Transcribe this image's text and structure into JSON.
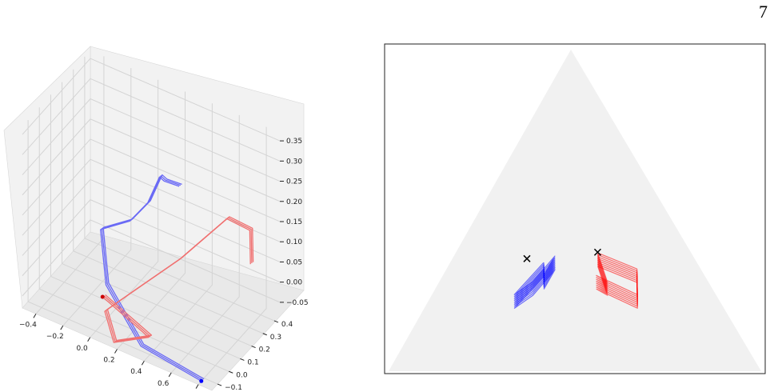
{
  "page_number": "7",
  "chart_data": [
    {
      "type": "line",
      "projection": "3d",
      "title": "",
      "xlabel": "",
      "ylabel": "",
      "zlabel": "",
      "x_ticks": [
        "−0.4",
        "−0.2",
        "0.0",
        "0.2",
        "0.4",
        "0.6",
        "0.8"
      ],
      "y_ticks": [
        "−0.1",
        "0.0",
        "0.1",
        "0.2",
        "0.3",
        "0.4"
      ],
      "z_ticks": [
        "0.35",
        "0.30",
        "0.25",
        "0.20",
        "0.15",
        "0.10",
        "0.05",
        "0.00",
        "−0.05"
      ],
      "xlim": [
        -0.5,
        0.9
      ],
      "ylim": [
        -0.15,
        0.45
      ],
      "zlim": [
        -0.08,
        0.37
      ],
      "grid": true,
      "series": [
        {
          "color": "#6a6af5",
          "marker_color": "#0000ff",
          "values": [
            [
              0.6,
              -0.08,
              0.36
            ],
            [
              0.38,
              0.05,
              0.3
            ],
            [
              0.22,
              0.2,
              0.24
            ],
            [
              0.05,
              0.3,
              0.12
            ],
            [
              -0.15,
              0.38,
              0.02
            ],
            [
              -0.4,
              0.42,
              -0.05
            ],
            [
              -0.05,
              0.05,
              -0.02
            ],
            [
              0.35,
              -0.12,
              -0.06
            ],
            [
              0.78,
              -0.1,
              -0.09
            ]
          ]
        },
        {
          "color": "#f07070",
          "marker_color": "#cc0000",
          "values": [
            [
              0.85,
              0.25,
              0.1
            ],
            [
              0.82,
              0.28,
              0.17
            ],
            [
              0.7,
              0.22,
              0.2
            ],
            [
              0.45,
              0.1,
              0.1
            ],
            [
              0.2,
              -0.02,
              0.02
            ],
            [
              0.05,
              -0.08,
              -0.03
            ],
            [
              0.15,
              -0.12,
              -0.08
            ],
            [
              0.35,
              -0.05,
              -0.06
            ],
            [
              -0.05,
              0.02,
              -0.04
            ]
          ]
        }
      ]
    },
    {
      "type": "line",
      "projection": "ternary",
      "title": "",
      "grid": false,
      "series": [
        {
          "color": "#0000ff",
          "values": [
            [
              0.32,
              0.42,
              0.26
            ],
            [
              0.22,
              0.55,
              0.23
            ],
            [
              0.26,
              0.48,
              0.26
            ],
            [
              0.34,
              0.38,
              0.28
            ],
            [
              0.28,
              0.44,
              0.28
            ]
          ],
          "fixed_point": [
            0.35,
            0.45,
            0.2
          ]
        },
        {
          "color": "#ff0000",
          "values": [
            [
              0.28,
              0.3,
              0.42
            ],
            [
              0.22,
              0.22,
              0.56
            ],
            [
              0.3,
              0.18,
              0.52
            ],
            [
              0.35,
              0.26,
              0.39
            ],
            [
              0.26,
              0.28,
              0.46
            ]
          ],
          "fixed_point": [
            0.37,
            0.25,
            0.38
          ]
        }
      ]
    }
  ]
}
